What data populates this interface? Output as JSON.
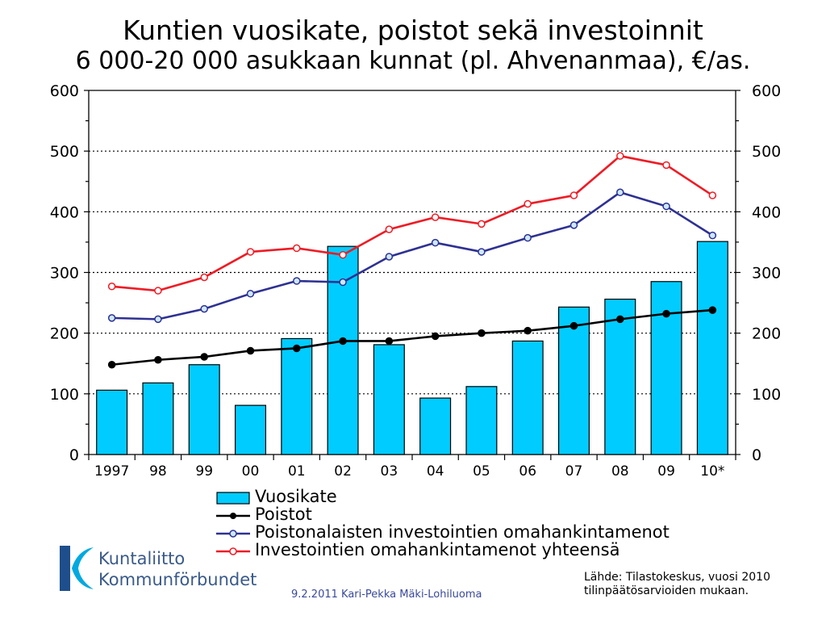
{
  "title_line1": "Kuntien vuosikate, poistot sekä investoinnit",
  "title_line2": "6 000-20 000 asukkaan kunnat (pl. Ahvenanmaa), €/as.",
  "chart_data": {
    "type": "bar",
    "categories": [
      "1997",
      "98",
      "99",
      "00",
      "01",
      "02",
      "03",
      "04",
      "05",
      "06",
      "07",
      "08",
      "09",
      "10*"
    ],
    "ylim": [
      0,
      600
    ],
    "yticks": [
      "0",
      "100",
      "200",
      "300",
      "400",
      "500",
      "600"
    ],
    "grid": true,
    "legend_placement": "bottom",
    "series": [
      {
        "name": "Vuosikate",
        "type": "bar",
        "color": "#00ccff",
        "values": [
          106,
          118,
          148,
          81,
          191,
          343,
          181,
          93,
          112,
          187,
          243,
          256,
          285,
          351
        ]
      },
      {
        "name": "Poistot",
        "type": "line",
        "color": "#000000",
        "values": [
          148,
          156,
          161,
          171,
          175,
          187,
          187,
          195,
          200,
          204,
          212,
          223,
          232,
          238
        ]
      },
      {
        "name": "Poistonalaisten investointien omahankintamenot",
        "type": "line",
        "color": "#2e3192",
        "values": [
          225,
          223,
          240,
          265,
          286,
          284,
          326,
          349,
          334,
          357,
          378,
          432,
          409,
          361
        ]
      },
      {
        "name": "Investointien omahankintamenot yhteensä",
        "type": "line",
        "color": "#ee1c25",
        "values": [
          277,
          270,
          292,
          334,
          340,
          329,
          371,
          391,
          380,
          413,
          427,
          492,
          477,
          427
        ]
      }
    ]
  },
  "logo": {
    "line1": "Kuntaliitto",
    "line2": "Kommunförbundet",
    "color": "#3a5a8a"
  },
  "source_line1": "Lähde: Tilastokeskus, vuosi 2010",
  "source_line2": "tilinpäätösarvioiden mukaan.",
  "footer": "9.2.2011 Kari-Pekka Mäki-Lohiluoma"
}
